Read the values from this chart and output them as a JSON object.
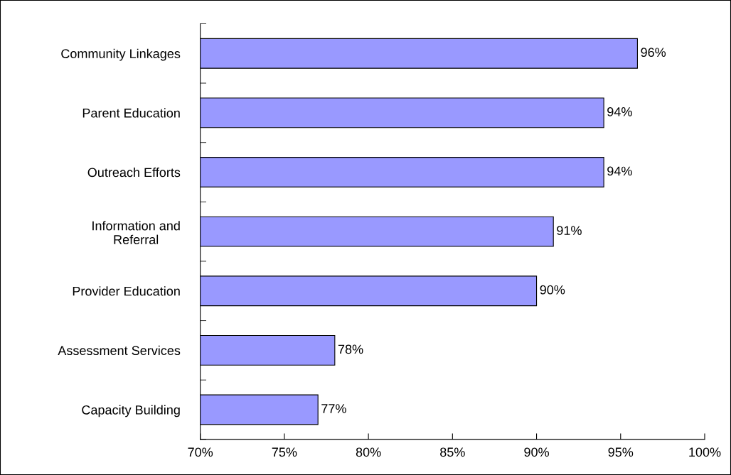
{
  "chart_data": {
    "type": "bar",
    "orientation": "horizontal",
    "categories": [
      "Community Linkages",
      "Parent Education",
      "Outreach Efforts",
      "Information and\nReferral",
      "Provider Education",
      "Assessment Services",
      "Capacity Building"
    ],
    "values": [
      96,
      94,
      94,
      91,
      90,
      78,
      77
    ],
    "value_labels": [
      "96%",
      "94%",
      "94%",
      "91%",
      "90%",
      "78%",
      "77%"
    ],
    "color": "#9999ff",
    "xlim": [
      70,
      100
    ],
    "xticks": [
      {
        "value": 70,
        "label": "70%"
      },
      {
        "value": 75,
        "label": "75%"
      },
      {
        "value": 80,
        "label": "80%"
      },
      {
        "value": 85,
        "label": "85%"
      },
      {
        "value": 90,
        "label": "90%"
      },
      {
        "value": 95,
        "label": "95%"
      },
      {
        "value": 100,
        "label": "100%"
      }
    ],
    "grid": false,
    "legend": false
  }
}
